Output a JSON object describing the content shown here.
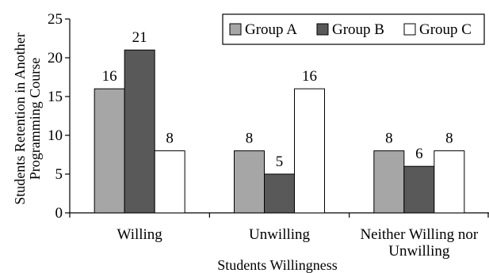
{
  "chart_data": {
    "type": "bar",
    "categories": [
      [
        "Willing"
      ],
      [
        "Unwilling"
      ],
      [
        "Neither Willing nor",
        "Unwilling"
      ]
    ],
    "series": [
      {
        "name": "Group A",
        "values": [
          16,
          8,
          8
        ],
        "color": "#a6a6a6"
      },
      {
        "name": "Group B",
        "values": [
          21,
          5,
          6
        ],
        "color": "#595959"
      },
      {
        "name": "Group C",
        "values": [
          8,
          16,
          8
        ],
        "color": "#ffffff"
      }
    ],
    "data_labels": [
      [
        "16",
        "21",
        "8"
      ],
      [
        "8",
        "5",
        "16"
      ],
      [
        "8",
        "6",
        "8"
      ]
    ],
    "xlabel": "Students Willingness",
    "ylabel": [
      "Students Retention in Another",
      "Programming Course"
    ],
    "ylim": [
      0,
      25
    ],
    "yticks": [
      0,
      5,
      10,
      15,
      20,
      25
    ],
    "ytick_labels": [
      "0",
      "5",
      "10",
      "15",
      "20",
      "25"
    ],
    "grid": false,
    "legend_position": "top-right"
  }
}
